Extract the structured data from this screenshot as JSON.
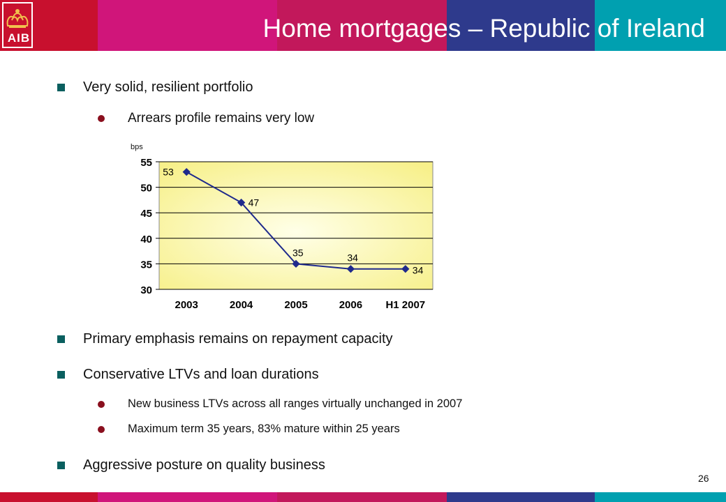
{
  "header": {
    "title": "Home mortgages – Republic of Ireland",
    "logo_text": "AIB",
    "band_colors": [
      "#c8102e",
      "#c8102e",
      "#d0157a",
      "#c2185b",
      "#2e3a8c",
      "#00a0b0"
    ]
  },
  "bullets": [
    {
      "level": 1,
      "text": "Very solid, resilient portfolio"
    },
    {
      "level": 2,
      "text": "Arrears profile remains very low"
    },
    {
      "level": 1,
      "text": "Primary emphasis remains on repayment capacity"
    },
    {
      "level": 1,
      "text": "Conservative LTVs and loan durations"
    },
    {
      "level": 2,
      "text": "New business LTVs across all ranges virtually unchanged in 2007"
    },
    {
      "level": 2,
      "text": "Maximum term 35 years, 83% mature within 25 years"
    },
    {
      "level": 1,
      "text": "Aggressive posture on quality business"
    }
  ],
  "page_number": "26",
  "chart_data": {
    "type": "line",
    "unit_label": "bps",
    "categories": [
      "2003",
      "2004",
      "2005",
      "2006",
      "H1 2007"
    ],
    "series": [
      {
        "values": [
          53,
          47,
          35,
          34,
          34
        ],
        "color": "#1f2a8c"
      }
    ],
    "ylim": [
      30,
      55
    ],
    "yticks": [
      "30",
      "35",
      "40",
      "45",
      "50",
      "55"
    ],
    "grid": true,
    "legend": "none",
    "plot_colors": {
      "center": "#ffffe8",
      "edge": "#f7f08a"
    }
  }
}
